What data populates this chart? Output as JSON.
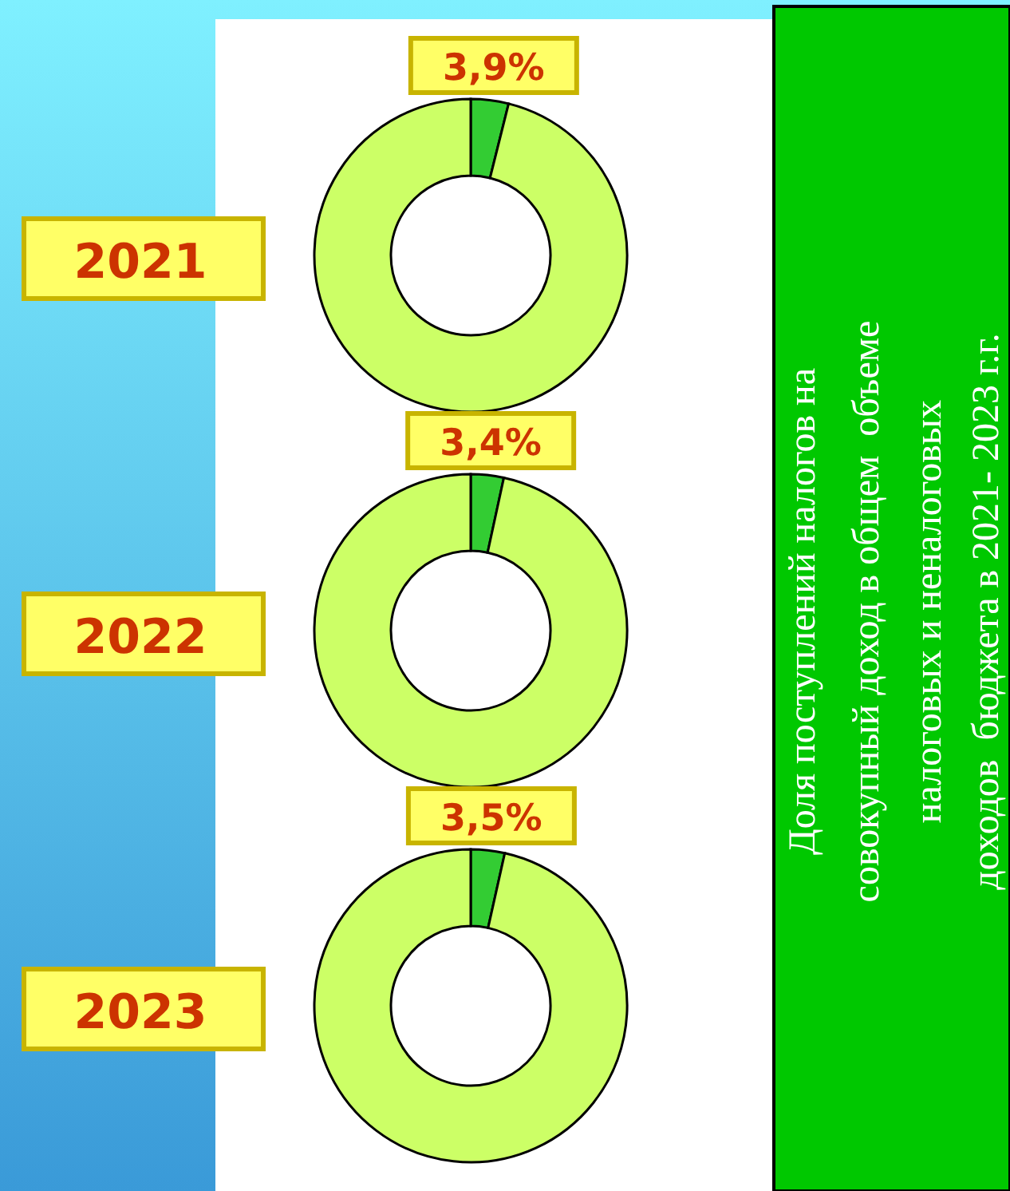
{
  "chart_data": [
    {
      "type": "donut",
      "title": "2021",
      "categories": [
        null,
        null
      ],
      "values": [
        3.9,
        96.1
      ],
      "colors": [
        "#33cc33",
        "#ccff66"
      ],
      "value_labels": [
        "3,9%",
        null
      ]
    },
    {
      "type": "donut",
      "title": "2022",
      "categories": [
        null,
        null
      ],
      "values": [
        3.4,
        96.6
      ],
      "colors": [
        "#33cc33",
        "#ccff66"
      ],
      "value_labels": [
        "3,4%",
        null
      ]
    },
    {
      "type": "donut",
      "title": "2023",
      "categories": [
        null,
        null
      ],
      "values": [
        3.5,
        96.5
      ],
      "colors": [
        "#33cc33",
        "#ccff66"
      ],
      "value_labels": [
        "3,5%",
        null
      ]
    },
    {
      "type": "other",
      "title": "Доля поступлений налогов на\nсовокупный доход в общем  объеме\nналоговых и неналоговых\nдоходов  бюджета в 2021- 2023 г.г."
    }
  ]
}
